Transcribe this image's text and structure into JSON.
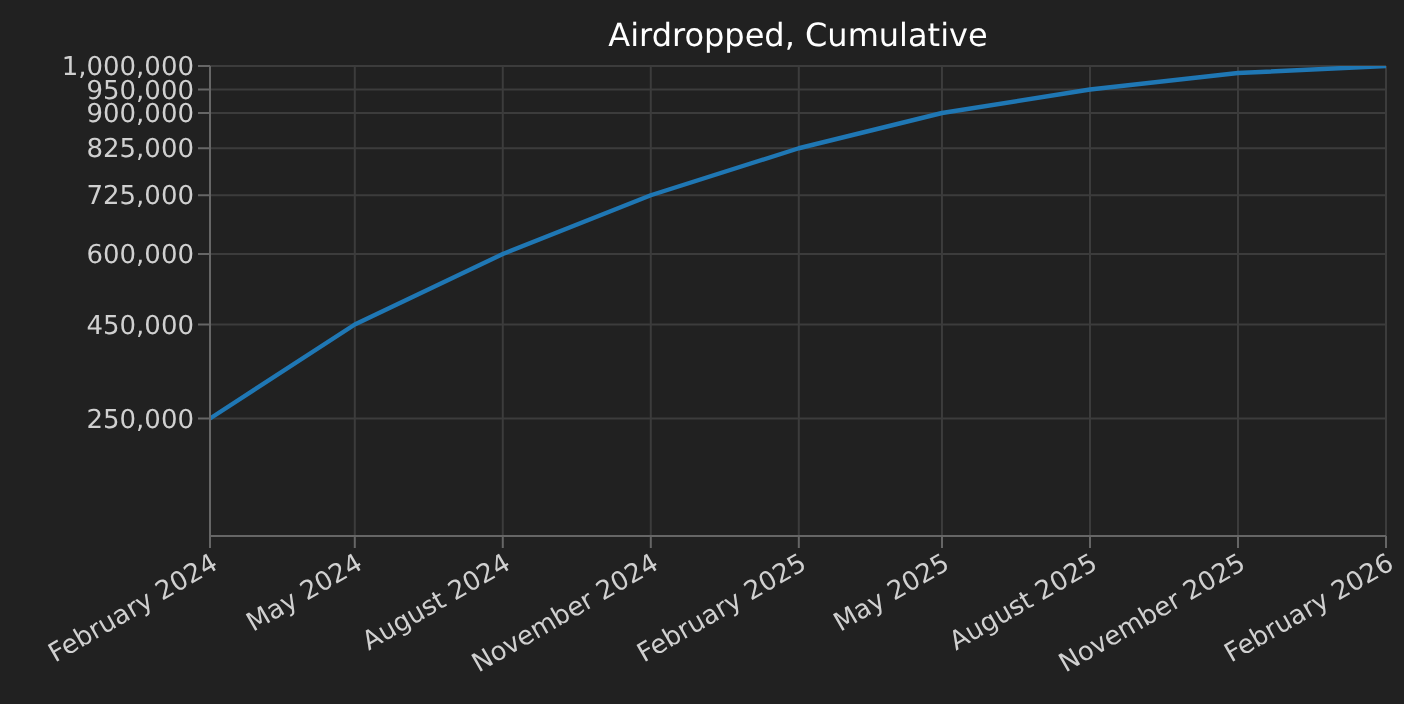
{
  "chart_data": {
    "type": "line",
    "title": "Airdropped, Cumulative",
    "x": [
      "2024-02",
      "2024-05",
      "2024-08",
      "2024-11",
      "2025-02",
      "2025-05",
      "2025-08",
      "2025-11",
      "2026-02"
    ],
    "series": [
      {
        "color": "#1f77b4",
        "values": [
          250000,
          450000,
          600000,
          725000,
          825000,
          900000,
          950000,
          985000,
          1000000
        ]
      }
    ],
    "xlim": [
      "2024-02",
      "2026-02"
    ],
    "xticks": [
      {
        "value": "2024-02",
        "label": "February 2024"
      },
      {
        "value": "2024-05",
        "label": "May 2024"
      },
      {
        "value": "2024-08",
        "label": "August 2024"
      },
      {
        "value": "2024-11",
        "label": "November 2024"
      },
      {
        "value": "2025-02",
        "label": "February 2025"
      },
      {
        "value": "2025-05",
        "label": "May 2025"
      },
      {
        "value": "2025-08",
        "label": "August 2025"
      },
      {
        "value": "2025-11",
        "label": "November 2025"
      },
      {
        "value": "2026-02",
        "label": "February 2026"
      }
    ],
    "ylim": [
      0,
      1000000
    ],
    "yticks": [
      {
        "value": 250000,
        "label": "250,000"
      },
      {
        "value": 450000,
        "label": "450,000"
      },
      {
        "value": 600000,
        "label": "600,000"
      },
      {
        "value": 725000,
        "label": "725,000"
      },
      {
        "value": 825000,
        "label": "825,000"
      },
      {
        "value": 900000,
        "label": "900,000"
      },
      {
        "value": 950000,
        "label": "950,000"
      },
      {
        "value": 1000000,
        "label": "1,000,000"
      }
    ],
    "grid": true,
    "marker": "none",
    "line_style": "solid"
  }
}
